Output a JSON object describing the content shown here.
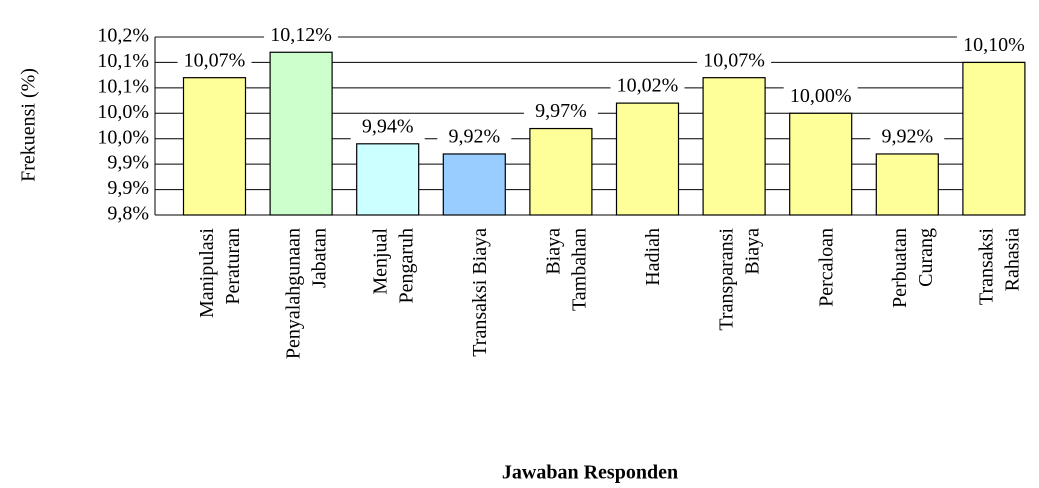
{
  "chart_data": {
    "type": "bar",
    "x_label": "Jawaban Responden",
    "y_label": "Frekuensi (%)",
    "categories": [
      [
        "Manipulasi",
        "Peraturan"
      ],
      [
        "Penyalahgunaan",
        "Jabatan"
      ],
      [
        "Menjual",
        "Pengaruh"
      ],
      [
        "Transaksi Biaya"
      ],
      [
        "Biaya",
        "Tambahan"
      ],
      [
        "Hadiah"
      ],
      [
        "Transparansi",
        "Biaya"
      ],
      [
        "Percaloan"
      ],
      [
        "Perbuatan",
        "Curang"
      ],
      [
        "Transaksi",
        "Rahasia"
      ]
    ],
    "values": [
      10.07,
      10.12,
      9.94,
      9.92,
      9.97,
      10.02,
      10.07,
      10.0,
      9.92,
      10.1
    ],
    "value_labels": [
      "10,07%",
      "10,12%",
      "9,94%",
      "9,92%",
      "9,97%",
      "10,02%",
      "10,07%",
      "10,00%",
      "9,92%",
      "10,10%"
    ],
    "colors": [
      "#ffff99",
      "#ccffcc",
      "#ccffff",
      "#99ccff",
      "#ffff99",
      "#ffff99",
      "#ffff99",
      "#ffff99",
      "#ffff99",
      "#ffff99"
    ],
    "ylim": [
      9.8,
      10.15
    ],
    "yticks": [
      {
        "value": 9.8,
        "label": "9,8%"
      },
      {
        "value": 9.85,
        "label": "9,9%"
      },
      {
        "value": 9.9,
        "label": "9,9%"
      },
      {
        "value": 9.95,
        "label": "10,0%"
      },
      {
        "value": 10.0,
        "label": "10,0%"
      },
      {
        "value": 10.05,
        "label": "10,1%"
      },
      {
        "value": 10.1,
        "label": "10,1%"
      },
      {
        "value": 10.15,
        "label": "10,2%"
      }
    ],
    "grid": true
  }
}
